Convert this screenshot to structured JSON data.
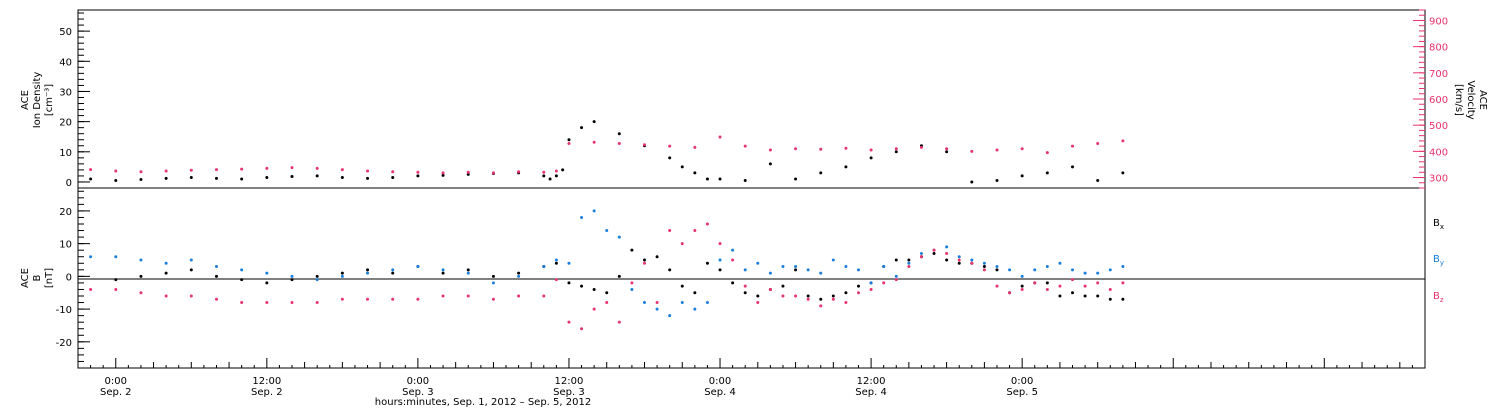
{
  "colors": {
    "black": "#000000",
    "pink": "#e8336b",
    "blue": "#1a7fdc"
  },
  "chart_data": [
    {
      "type": "scatter",
      "panel": "top",
      "ylabel_left": [
        "ACE",
        "Ion Density",
        "[cm⁻³]"
      ],
      "ylabel_right": [
        "ACE",
        "Velocity",
        "[km/s]"
      ],
      "left_ticks": [
        "0",
        "10",
        "20",
        "30",
        "40",
        "50"
      ],
      "right_ticks": [
        "300",
        "400",
        "500",
        "600",
        "700",
        "800",
        "900"
      ],
      "ylim_left": [
        -2,
        57
      ],
      "ylim_right": [
        260,
        940
      ],
      "x_hours": [
        -3,
        104
      ],
      "series": [
        {
          "color": "black",
          "axis": "left",
          "x": [
            -2,
            0,
            2,
            4,
            6,
            8,
            10,
            12,
            14,
            16,
            18,
            20,
            22,
            24,
            26,
            28,
            30,
            32,
            34,
            34.5,
            35,
            35.5,
            36,
            37,
            38,
            40,
            42,
            44,
            45,
            46,
            47,
            48,
            50,
            52,
            54,
            56,
            58,
            60,
            62,
            64,
            66,
            68,
            70,
            72,
            74,
            76,
            78,
            80
          ],
          "y": [
            1,
            0.5,
            0.8,
            1.2,
            1.5,
            1.2,
            1,
            1.5,
            1.8,
            2,
            1.5,
            1.2,
            1.5,
            2,
            2.2,
            2.5,
            2.8,
            3,
            2,
            1,
            2,
            4,
            14,
            18,
            20,
            16,
            12,
            8,
            5,
            3,
            1,
            1,
            0.5,
            6,
            1,
            3,
            5,
            8,
            10,
            12,
            10,
            0,
            0.5,
            2,
            3,
            5,
            0.5,
            3
          ]
        },
        {
          "color": "pink",
          "axis": "right",
          "x": [
            -2,
            0,
            2,
            4,
            6,
            8,
            10,
            12,
            14,
            16,
            18,
            20,
            22,
            24,
            26,
            28,
            30,
            32,
            34,
            35,
            36,
            38,
            40,
            42,
            44,
            46,
            48,
            50,
            52,
            54,
            56,
            58,
            60,
            62,
            64,
            66,
            68,
            70,
            72,
            74,
            76,
            78,
            80
          ],
          "y": [
            330,
            325,
            322,
            325,
            328,
            330,
            332,
            335,
            338,
            335,
            330,
            325,
            322,
            320,
            318,
            320,
            318,
            322,
            320,
            325,
            430,
            435,
            430,
            425,
            420,
            415,
            455,
            420,
            405,
            410,
            408,
            412,
            405,
            410,
            415,
            410,
            400,
            405,
            410,
            395,
            420,
            430,
            440
          ]
        }
      ]
    },
    {
      "type": "scatter",
      "panel": "bottom",
      "ylabel_left": [
        "ACE",
        "B",
        "[nT]"
      ],
      "left_ticks": [
        "-20",
        "-10",
        "0",
        "10",
        "20"
      ],
      "ylim": [
        -28,
        27
      ],
      "x_hours": [
        -3,
        104
      ],
      "x_tick_labels": [
        {
          "h": 0,
          "time": "0:00",
          "date": "Sep. 2"
        },
        {
          "h": 12,
          "time": "12:00",
          "date": "Sep. 2"
        },
        {
          "h": 24,
          "time": "0:00",
          "date": "Sep. 3"
        },
        {
          "h": 36,
          "time": "12:00",
          "date": "Sep. 3"
        },
        {
          "h": 48,
          "time": "0:00",
          "date": "Sep. 4"
        },
        {
          "h": 60,
          "time": "12:00",
          "date": "Sep. 4"
        },
        {
          "h": 72,
          "time": "0:00",
          "date": "Sep. 5"
        }
      ],
      "xlabel": "hours:minutes, Sep.  1, 2012 – Sep.  5, 2012",
      "legend": [
        {
          "label": "B",
          "sub": "x",
          "color": "black"
        },
        {
          "label": "B",
          "sub": "y",
          "color": "blue"
        },
        {
          "label": "B",
          "sub": "z",
          "color": "pink"
        }
      ],
      "series": [
        {
          "name": "Bx",
          "color": "black",
          "x": [
            0,
            2,
            4,
            6,
            8,
            10,
            12,
            14,
            16,
            18,
            20,
            22,
            24,
            26,
            28,
            30,
            32,
            34,
            35,
            36,
            37,
            38,
            39,
            40,
            41,
            42,
            43,
            44,
            45,
            46,
            47,
            48,
            49,
            50,
            51,
            52,
            53,
            54,
            55,
            56,
            57,
            58,
            59,
            60,
            61,
            62,
            63,
            64,
            65,
            66,
            67,
            68,
            69,
            70,
            71,
            72,
            73,
            74,
            75,
            76,
            77,
            78,
            79,
            80
          ],
          "y": [
            -1,
            0,
            1,
            2,
            0,
            -1,
            -2,
            -1,
            0,
            1,
            2,
            1,
            3,
            1,
            2,
            0,
            1,
            3,
            4,
            -2,
            -3,
            -4,
            -5,
            0,
            8,
            5,
            6,
            2,
            -3,
            -5,
            4,
            2,
            -2,
            -5,
            -6,
            -4,
            -3,
            2,
            -6,
            -7,
            -6,
            -5,
            -3,
            -2,
            3,
            5,
            5,
            6,
            7,
            5,
            4,
            4,
            3,
            2,
            -5,
            -3,
            -2,
            -2,
            -6,
            -5,
            -6,
            -6,
            -7,
            -7
          ]
        },
        {
          "name": "By",
          "color": "blue",
          "x": [
            -2,
            0,
            2,
            4,
            6,
            8,
            10,
            12,
            14,
            16,
            18,
            20,
            22,
            24,
            26,
            28,
            30,
            32,
            34,
            35,
            36,
            37,
            38,
            39,
            40,
            41,
            42,
            43,
            44,
            45,
            46,
            47,
            48,
            49,
            50,
            51,
            52,
            53,
            54,
            55,
            56,
            57,
            58,
            59,
            60,
            61,
            62,
            63,
            64,
            65,
            66,
            67,
            68,
            69,
            70,
            71,
            72,
            73,
            74,
            75,
            76,
            77,
            78,
            79,
            80
          ],
          "y": [
            6,
            6,
            5,
            4,
            5,
            3,
            2,
            1,
            0,
            -1,
            0,
            1,
            2,
            3,
            2,
            1,
            -2,
            0,
            3,
            5,
            4,
            18,
            20,
            14,
            12,
            -4,
            -8,
            -10,
            -12,
            -8,
            -10,
            -8,
            5,
            8,
            2,
            4,
            1,
            3,
            3,
            2,
            1,
            5,
            3,
            2,
            -2,
            3,
            0,
            4,
            7,
            8,
            9,
            6,
            5,
            4,
            3,
            2,
            0,
            2,
            3,
            4,
            2,
            1,
            1,
            2,
            3
          ]
        },
        {
          "name": "Bz",
          "color": "pink",
          "x": [
            -2,
            0,
            2,
            4,
            6,
            8,
            10,
            12,
            14,
            16,
            18,
            20,
            22,
            24,
            26,
            28,
            30,
            32,
            34,
            35,
            36,
            37,
            38,
            39,
            40,
            41,
            42,
            43,
            44,
            45,
            46,
            47,
            48,
            49,
            50,
            51,
            52,
            53,
            54,
            55,
            56,
            57,
            58,
            59,
            60,
            61,
            62,
            63,
            64,
            65,
            66,
            67,
            68,
            69,
            70,
            71,
            72,
            73,
            74,
            75,
            76,
            77,
            78,
            79,
            80
          ],
          "y": [
            -4,
            -4,
            -5,
            -6,
            -6,
            -7,
            -8,
            -8,
            -8,
            -8,
            -7,
            -7,
            -7,
            -7,
            -6,
            -6,
            -7,
            -6,
            -6,
            -1,
            -14,
            -16,
            -10,
            -8,
            -14,
            -2,
            4,
            -8,
            14,
            10,
            14,
            16,
            10,
            5,
            -3,
            -8,
            -4,
            -6,
            -6,
            -7,
            -9,
            -7,
            -8,
            -5,
            -4,
            -2,
            -1,
            3,
            6,
            8,
            7,
            5,
            4,
            2,
            -3,
            -5,
            -4,
            -2,
            -4,
            -3,
            -1,
            -3,
            -2,
            -4,
            -2
          ]
        }
      ]
    }
  ]
}
